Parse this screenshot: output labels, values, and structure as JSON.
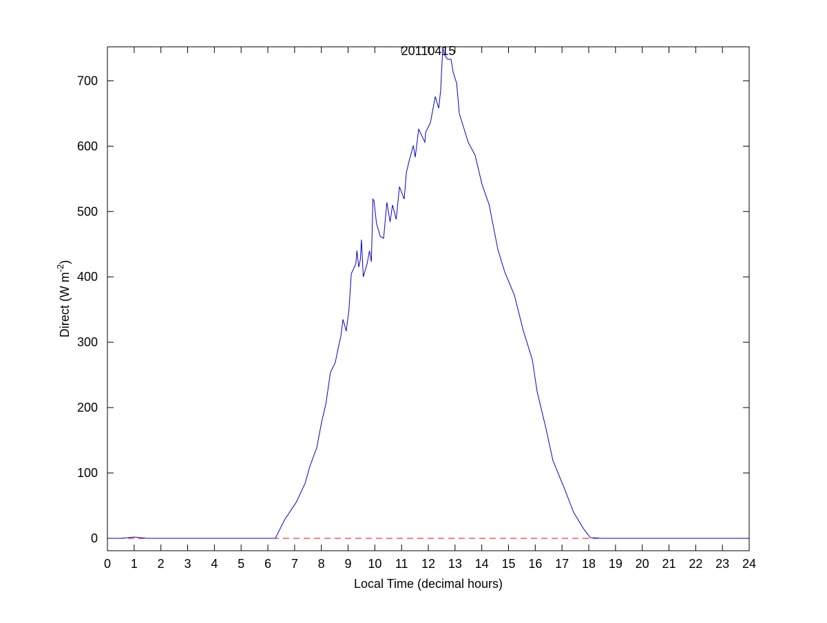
{
  "chart_data": {
    "type": "line",
    "title": "20110415",
    "xlabel": "Local Time (decimal hours)",
    "ylabel": "Direct (W m",
    "ylabel_superscript": "-2",
    "ylabel_suffix": ")",
    "xlim": [
      0,
      24
    ],
    "ylim": [
      -19,
      752
    ],
    "xticks": [
      "0",
      "1",
      "2",
      "3",
      "4",
      "5",
      "6",
      "7",
      "8",
      "9",
      "10",
      "11",
      "12",
      "13",
      "14",
      "15",
      "16",
      "17",
      "18",
      "19",
      "20",
      "21",
      "22",
      "23",
      "24"
    ],
    "yticks": [
      "0",
      "100",
      "200",
      "300",
      "400",
      "500",
      "600",
      "700"
    ],
    "grid": false,
    "colors": {
      "series": "#0000cc",
      "reference": "#ff0000",
      "axes": "#000000"
    },
    "reference_line": {
      "y": 0,
      "style": "dashed"
    },
    "series": [
      {
        "x": [
          0,
          0.5,
          0.8,
          1.0,
          1.2,
          1.5,
          2,
          3,
          4,
          5,
          5.5,
          6,
          6.28,
          6.62,
          7.06,
          7.39,
          7.57,
          7.83,
          8.0,
          8.17,
          8.34,
          8.52,
          8.65,
          8.73,
          8.81,
          8.93,
          9.03,
          9.12,
          9.29,
          9.33,
          9.4,
          9.46,
          9.5,
          9.57,
          9.71,
          9.8,
          9.87,
          9.93,
          9.97,
          10.06,
          10.2,
          10.33,
          10.45,
          10.57,
          10.66,
          10.8,
          10.92,
          11.1,
          11.18,
          11.3,
          11.44,
          11.51,
          11.64,
          11.87,
          11.9,
          12.08,
          12.26,
          12.39,
          12.46,
          12.54,
          12.6,
          12.72,
          12.85,
          12.93,
          13.06,
          13.16,
          13.49,
          13.75,
          14.01,
          14.27,
          14.6,
          14.86,
          15.22,
          15.55,
          15.89,
          16.07,
          16.4,
          16.66,
          17.1,
          17.43,
          17.8,
          18.06,
          18.5,
          19,
          20,
          21,
          22,
          23,
          24
        ],
        "y": [
          0,
          0,
          1,
          2,
          1,
          0,
          0,
          0,
          0,
          0,
          0,
          0,
          0,
          28,
          55,
          84,
          110,
          139,
          176,
          206,
          254,
          269,
          295,
          309,
          335,
          317,
          349,
          405,
          420,
          440,
          415,
          427,
          457,
          400,
          420,
          440,
          423,
          519,
          516,
          482,
          462,
          459,
          514,
          484,
          510,
          488,
          538,
          519,
          560,
          580,
          601,
          583,
          626,
          606,
          621,
          636,
          676,
          658,
          685,
          751,
          740,
          733,
          733,
          713,
          696,
          650,
          606,
          586,
          541,
          511,
          442,
          407,
          372,
          318,
          273,
          224,
          168,
          119,
          75,
          40,
          15,
          1,
          0,
          0,
          0,
          0,
          0,
          0,
          0
        ]
      }
    ]
  }
}
